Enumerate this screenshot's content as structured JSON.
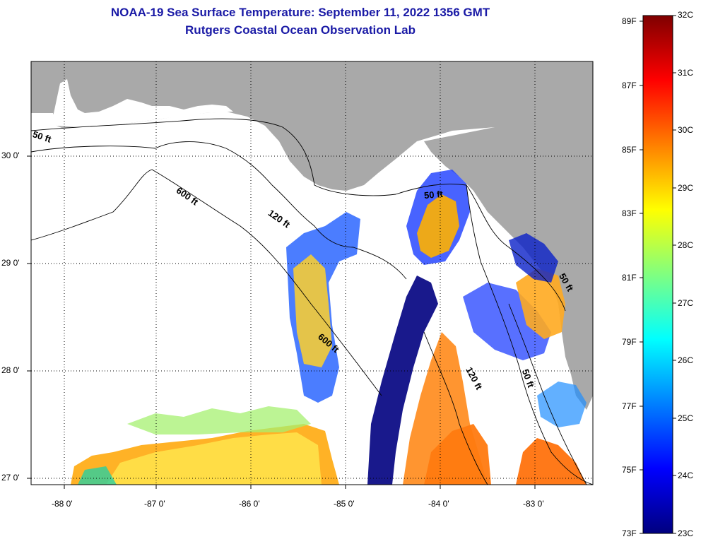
{
  "title": {
    "line1": "NOAA-19 Sea Surface Temperature:  September 11, 2022 1356 GMT",
    "line2": "Rutgers Coastal Ocean Observation Lab"
  },
  "map": {
    "latitude_labels": [
      "30 0'",
      "29 0'",
      "28 0'",
      "27 0'"
    ],
    "longitude_labels": [
      "-88 0'",
      "-87 0'",
      "-86 0'",
      "-85 0'",
      "-84 0'",
      "-83 0'"
    ],
    "depth_contour_labels": [
      "50 ft",
      "600 ft",
      "120 ft",
      "600 ft",
      "50 ft",
      "120 ft",
      "50 ft",
      "50 ft"
    ],
    "colors": {
      "land": "#a9a9a9",
      "no_data": "#ffffff"
    }
  },
  "colorbar": {
    "fahrenheit_labels": [
      "89F",
      "87F",
      "85F",
      "83F",
      "81F",
      "79F",
      "77F",
      "75F",
      "73F"
    ],
    "celsius_labels": [
      "32C",
      "31C",
      "30C",
      "29C",
      "28C",
      "27C",
      "26C",
      "25C",
      "24C",
      "23C"
    ],
    "colors": [
      "#00007f",
      "#0000ff",
      "#0080ff",
      "#00ffff",
      "#80ff80",
      "#ffff00",
      "#ff8000",
      "#ff0000",
      "#7f0000"
    ]
  }
}
